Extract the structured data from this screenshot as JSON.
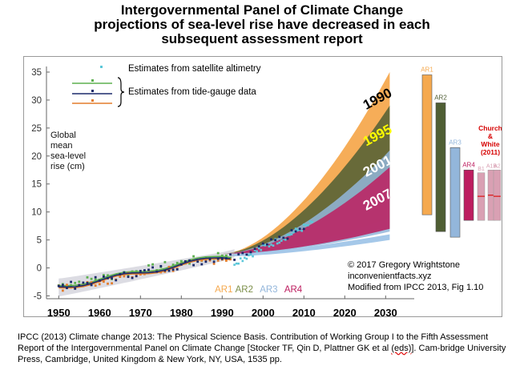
{
  "title_lines": [
    "Intergovernmental Panel of Climate Change",
    "projections of sea-level rise have decreased in each",
    "subsequent assessment report"
  ],
  "citation": {
    "before": "IPCC (2013) Climate change 2013: The Physical Science Basis. Contribution of Working Group I to the Fifth Assessment Report of the Intergovernmental Panel on Climate Change [Stocker TF, Qin D, Plattner GK et al ",
    "underlined": "(eds)",
    "after": "]. Cam-bridge University Press, Cambridge, United Kingdom & New York, NY, USA, 1535 pp."
  },
  "colors": {
    "ar1": "#f5a94f",
    "ar2": "#4f5e34",
    "ar3": "#93b6db",
    "ar4": "#bd1d5f",
    "church_white": "#d9a0b3",
    "satellite": "#5bc7d9",
    "tide_green": "#5db04f",
    "tide_navy": "#1b2a6b",
    "tide_orange": "#e37d2c",
    "church_label": "#d60000"
  },
  "chart_data": {
    "type": "area",
    "ylabel": "Global mean sea-level rise (cm)",
    "ylabel_lines": [
      "Global",
      "mean",
      "sea-level",
      "rise (cm)"
    ],
    "xlim": [
      1947,
      2037
    ],
    "ylim": [
      -5.5,
      36
    ],
    "xticks": [
      1950,
      1960,
      1970,
      1980,
      1990,
      2000,
      2010,
      2020,
      2030
    ],
    "yticks": [
      -5,
      0,
      5,
      10,
      15,
      20,
      25,
      30,
      35
    ],
    "legend": {
      "placement": "top-left",
      "satellite_label": "Estimates from satellite altimetry",
      "tide_label": "Estimates from tide-gauge data"
    },
    "observations": {
      "tide_gauge_range": [
        1950,
        1990
      ],
      "tide_gauge_start": -3.5,
      "tide_gauge_end": 2,
      "satellite_range": [
        1993,
        2012
      ],
      "satellite_start": 1,
      "satellite_end": 8
    },
    "projections": [
      {
        "name": "1990",
        "start_year": 1990,
        "end_year": 2031,
        "lower_2031": 9,
        "upper_2031": 35
      },
      {
        "name": "1995",
        "start_year": 1990,
        "end_year": 2031,
        "lower_2031": 7,
        "upper_2031": 29
      },
      {
        "name": "2001",
        "start_year": 1990,
        "end_year": 2031,
        "lower_2031": 6.5,
        "upper_2031": 21
      },
      {
        "name": "2007",
        "start_year": 1990,
        "end_year": 2031,
        "lower_2031": 7,
        "upper_2031": 18
      }
    ],
    "report_markers": [
      {
        "label": "AR1",
        "year": 1990
      },
      {
        "label": "AR2",
        "year": 1995
      },
      {
        "label": "AR3",
        "year": 2001
      },
      {
        "label": "AR4",
        "year": 2007
      }
    ],
    "range_bars": [
      {
        "label": "AR1",
        "min": 9.5,
        "max": 34.5,
        "colorKey": "ar1",
        "width_years": 2.3
      },
      {
        "label": "AR2",
        "min": 6.5,
        "max": 29.5,
        "colorKey": "ar2",
        "width_years": 2.3
      },
      {
        "label": "AR3",
        "min": 5.5,
        "max": 21.5,
        "colorKey": "ar3",
        "width_years": 2.3
      },
      {
        "label": "AR4",
        "min": 8.5,
        "max": 17.5,
        "colorKey": "ar4",
        "width_years": 2.3
      }
    ],
    "church_white": {
      "label_lines": [
        "Church",
        "&",
        "White",
        "(2011)"
      ],
      "bars": [
        {
          "label": "B1",
          "min": 8.5,
          "max": 17,
          "median": 12.8
        },
        {
          "label": "A1B",
          "min": 8.5,
          "max": 17.5,
          "median": 13
        },
        {
          "label": "A2",
          "min": 8.5,
          "max": 17.5,
          "median": 12.8
        }
      ]
    },
    "credits": [
      "© 2017 Gregory Wrightstone",
      "inconvenientfacts.xyz",
      "Modified from IPCC 2013, Fig 1.10"
    ]
  }
}
